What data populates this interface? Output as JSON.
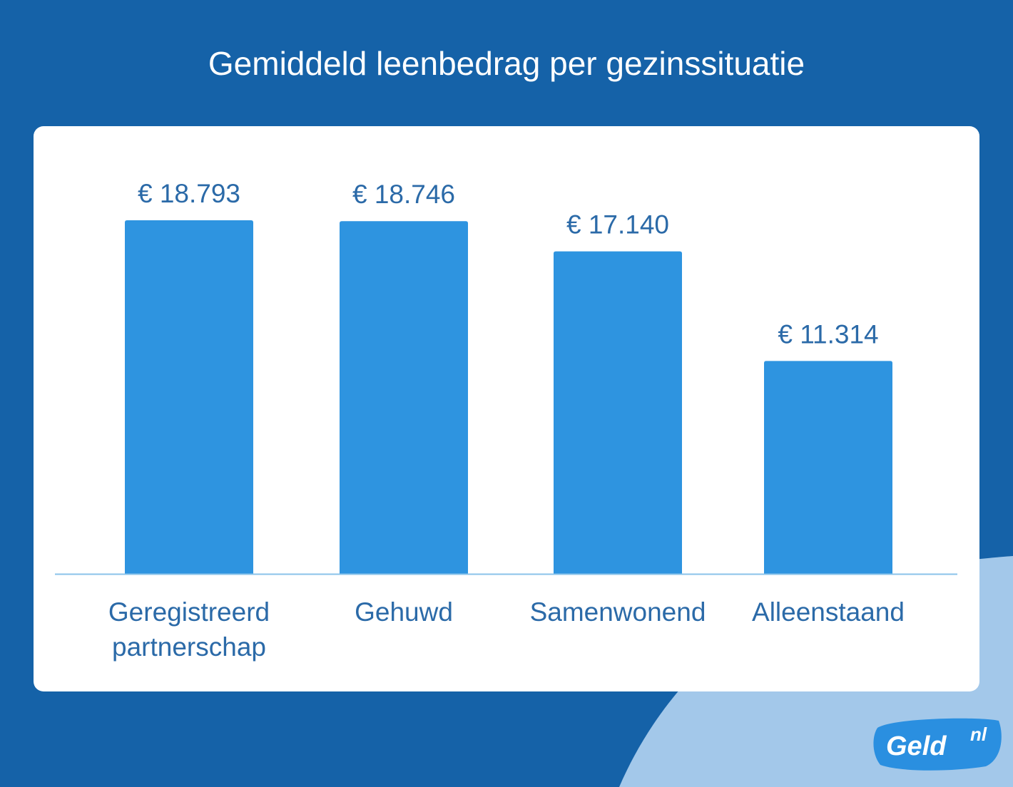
{
  "chart_data": {
    "type": "bar",
    "title": "Gemiddeld leenbedrag per gezinssituatie",
    "categories": [
      [
        "Geregistreerd",
        "partnerschap"
      ],
      [
        "Gehuwd"
      ],
      [
        "Samenwonend"
      ],
      [
        "Alleenstaand"
      ]
    ],
    "values": [
      18793,
      18746,
      17140,
      11314
    ],
    "value_labels": [
      "€ 18.793",
      "€ 18.746",
      "€ 17.140",
      "€ 11.314"
    ],
    "ylim": [
      0,
      18793
    ],
    "xlabel": "",
    "ylabel": "",
    "grid": false,
    "colors": {
      "bar": "#2e94e0",
      "value_text": "#2b6aa8",
      "axis": "#8ac3ea"
    }
  },
  "logo": {
    "text": "Geld",
    "suffix": "nl"
  },
  "colors": {
    "background": "#1562a8",
    "blob": "#a3c8ea",
    "logo_badge": "#2a8fe0"
  }
}
